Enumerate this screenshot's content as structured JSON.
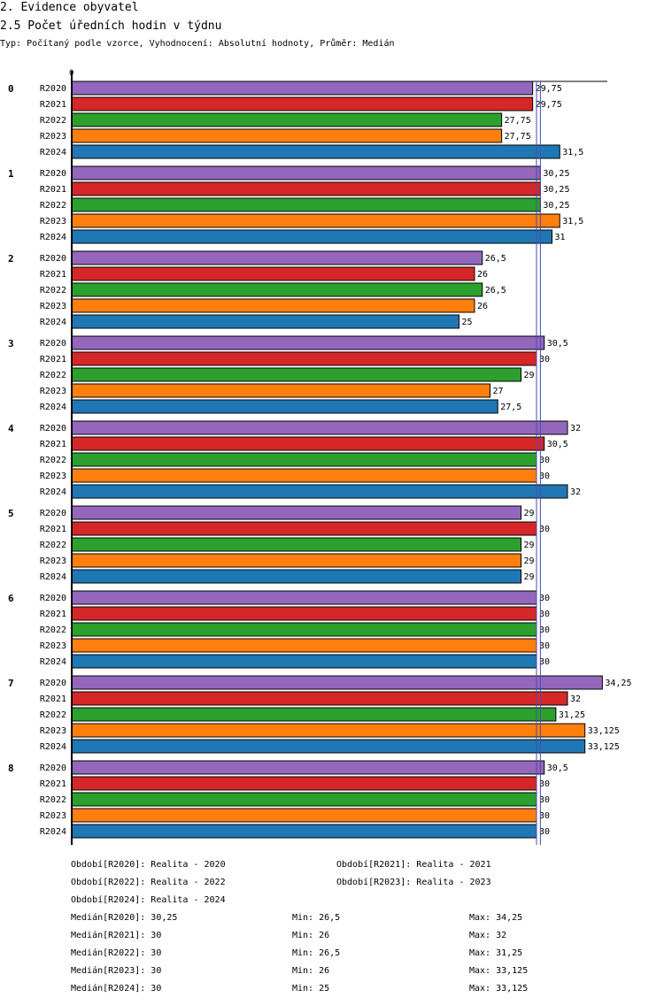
{
  "header": {
    "title": "2. Evidence obyvatel",
    "subtitle": "2.5 Počet úředních hodin v týdnu",
    "info": "Typ: Počítaný podle vzorce, Vyhodnocení: Absolutní hodnoty, Průměr: Medián"
  },
  "colors": {
    "R2020": "#9467bd",
    "R2021": "#d62728",
    "R2022": "#2ca02c",
    "R2023": "#ff7f0e",
    "R2024": "#1f77b4"
  },
  "chart_data": {
    "type": "bar",
    "orientation": "horizontal",
    "title": "2.5 Počet úředních hodin v týdnu",
    "axis_zero_label": "0",
    "categories": [
      "0",
      "1",
      "2",
      "3",
      "4",
      "5",
      "6",
      "7",
      "8"
    ],
    "series": [
      {
        "name": "R2020",
        "values": [
          29.75,
          30.25,
          26.5,
          30.5,
          32,
          29,
          30,
          34.25,
          30.5
        ],
        "labels": [
          "29,75",
          "30,25",
          "26,5",
          "30,5",
          "32",
          "29",
          "30",
          "34,25",
          "30,5"
        ]
      },
      {
        "name": "R2021",
        "values": [
          29.75,
          30.25,
          26,
          30,
          30.5,
          30,
          30,
          32,
          30
        ],
        "labels": [
          "29,75",
          "30,25",
          "26",
          "30",
          "30,5",
          "30",
          "30",
          "32",
          "30"
        ]
      },
      {
        "name": "R2022",
        "values": [
          27.75,
          30.25,
          26.5,
          29,
          30,
          29,
          30,
          31.25,
          30
        ],
        "labels": [
          "27,75",
          "30,25",
          "26,5",
          "29",
          "30",
          "29",
          "30",
          "31,25",
          "30"
        ]
      },
      {
        "name": "R2023",
        "values": [
          27.75,
          31.5,
          26,
          27,
          30,
          29,
          30,
          33.125,
          30
        ],
        "labels": [
          "27,75",
          "31,5",
          "26",
          "27",
          "30",
          "29",
          "30",
          "33,125",
          "30"
        ]
      },
      {
        "name": "R2024",
        "values": [
          31.5,
          31,
          25,
          27.5,
          32,
          29,
          30,
          33.125,
          30
        ],
        "labels": [
          "31,5",
          "31",
          "25",
          "27,5",
          "32",
          "29",
          "30",
          "33,125",
          "30"
        ]
      }
    ],
    "median_lines": [
      30,
      30.25
    ]
  },
  "legend": {
    "periods": [
      "Období[R2020]: Realita - 2020",
      "Období[R2021]: Realita - 2021",
      "Období[R2022]: Realita - 2022",
      "Období[R2023]: Realita - 2023",
      "Období[R2024]: Realita - 2024"
    ],
    "stats": [
      {
        "median": "Medián[R2020]: 30,25",
        "min": "Min: 26,5",
        "max": "Max: 34,25"
      },
      {
        "median": "Medián[R2021]: 30",
        "min": "Min: 26",
        "max": "Max: 32"
      },
      {
        "median": "Medián[R2022]: 30",
        "min": "Min: 26,5",
        "max": "Max: 31,25"
      },
      {
        "median": "Medián[R2023]: 30",
        "min": "Min: 26",
        "max": "Max: 33,125"
      },
      {
        "median": "Medián[R2024]: 30",
        "min": "Min: 25",
        "max": "Max: 33,125"
      }
    ]
  }
}
